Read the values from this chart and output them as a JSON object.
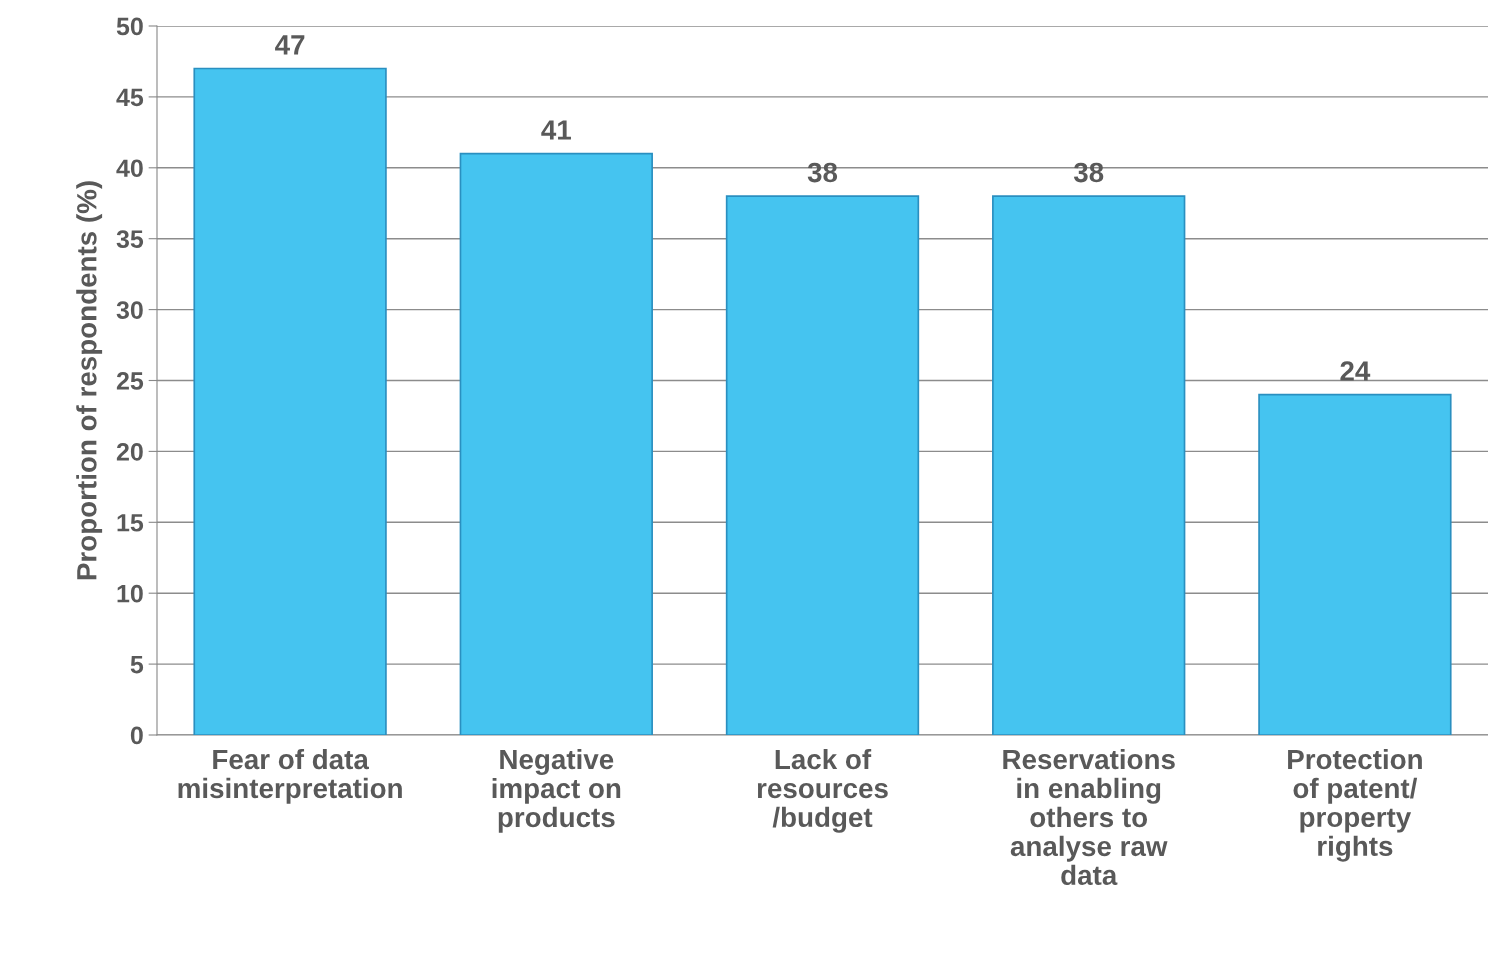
{
  "chart_data": {
    "type": "bar",
    "ylabel": "Proportion of respondents (%)",
    "categories": [
      "Fear of data\nmisinterpretation",
      "Negative\nimpact on\nproducts",
      "Lack of\nresources\n/budget",
      "Reservations\nin enabling\nothers to\nanalyse raw\ndata",
      "Protection\nof patent/\nproperty\nrights"
    ],
    "values": [
      47,
      41,
      38,
      38,
      24
    ],
    "color": "#45c4f0",
    "ylim": [
      0,
      50
    ],
    "yticks": [
      0,
      5,
      10,
      15,
      20,
      25,
      30,
      35,
      40,
      45,
      50
    ],
    "grid": "y",
    "data_labels": true
  }
}
